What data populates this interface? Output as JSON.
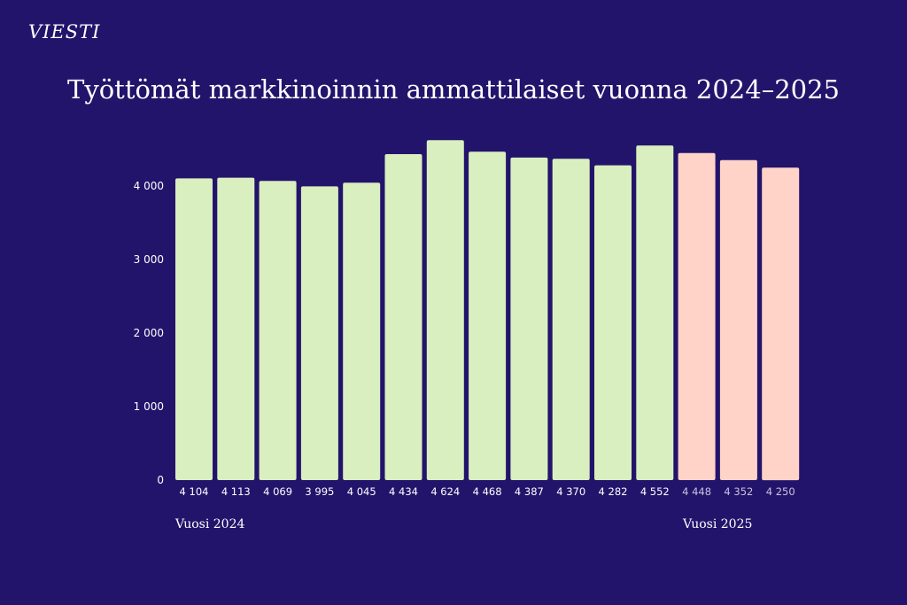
{
  "logo": "VIESTI",
  "colors": {
    "background": "#23146b",
    "bar_2024": "#d9efc0",
    "bar_2025": "#ffd3c8",
    "text": "#ffffff",
    "label_2025": "#c8c2de"
  },
  "chart_data": {
    "type": "bar",
    "title": "Työttömät markkinoinnin ammattilaiset vuonna 2024–2025",
    "xlabel": "",
    "ylabel": "",
    "ylim": [
      0,
      4700
    ],
    "yticks": [
      0,
      1000,
      2000,
      3000,
      4000
    ],
    "ytick_labels": [
      "0",
      "1 000",
      "2 000",
      "3 000",
      "4 000"
    ],
    "grid": false,
    "legend": "none",
    "groups": [
      {
        "label": "Vuosi 2024",
        "start": 0,
        "end": 11
      },
      {
        "label": "Vuosi 2025",
        "start": 12,
        "end": 14
      }
    ],
    "values": [
      4104,
      4113,
      4069,
      3995,
      4045,
      4434,
      4624,
      4468,
      4387,
      4370,
      4282,
      4552,
      4448,
      4352,
      4250
    ],
    "value_labels": [
      "4 104",
      "4 113",
      "4 069",
      "3 995",
      "4 045",
      "4 434",
      "4 624",
      "4 468",
      "4 387",
      "4 370",
      "4 282",
      "4 552",
      "4 448",
      "4 352",
      "4 250"
    ]
  }
}
